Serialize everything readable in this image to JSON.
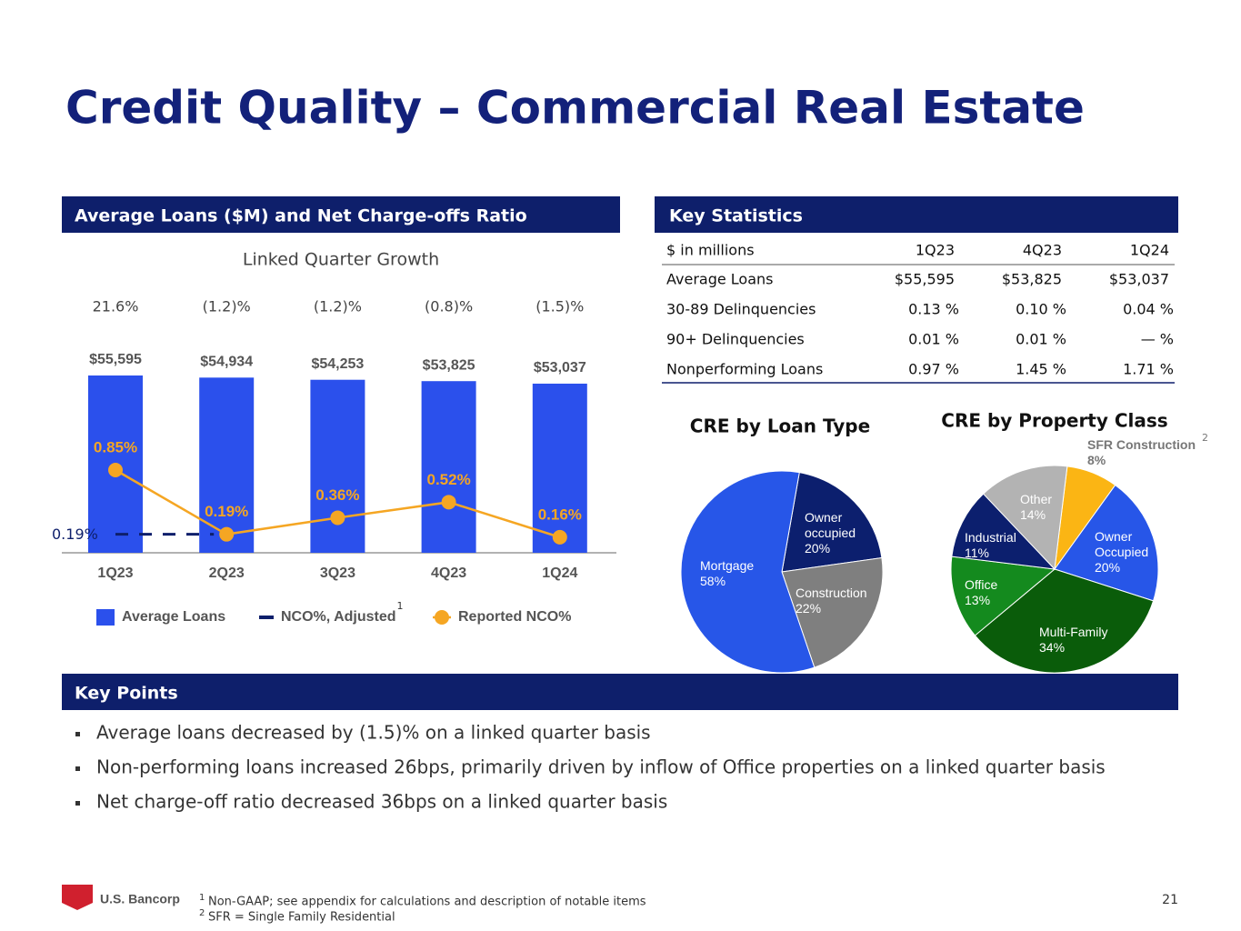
{
  "title": "Credit Quality – Commercial Real Estate",
  "chart_data": [
    {
      "type": "bar",
      "title": "Average Loans ($M) and Net Charge-offs Ratio",
      "subtitle": "Linked Quarter Growth",
      "annotations": [
        "21.6%",
        "(1.2)%",
        "(1.2)%",
        "(0.8)%",
        "(1.5)%"
      ],
      "categories": [
        "1Q23",
        "2Q23",
        "3Q23",
        "4Q23",
        "1Q24"
      ],
      "series": [
        {
          "name": "Average Loans",
          "type": "bar",
          "color": "#2b50ec",
          "values": [
            55595,
            54934,
            54253,
            53825,
            53037
          ],
          "value_labels": [
            "$55,595",
            "$54,934",
            "$54,253",
            "$53,825",
            "$53,037"
          ]
        },
        {
          "name": "NCO%, Adjusted",
          "type": "line",
          "style": "dashed",
          "color": "#0e1f6b",
          "footnote_ref": "1",
          "values": [
            0.19,
            0.19,
            null,
            null,
            null
          ],
          "value_labels": [
            "0.19%",
            null,
            null,
            null,
            null
          ]
        },
        {
          "name": "Reported NCO%",
          "type": "line",
          "color": "#f5a623",
          "values": [
            0.85,
            0.19,
            0.36,
            0.52,
            0.16
          ],
          "value_labels": [
            "0.85%",
            "0.19%",
            "0.36%",
            "0.52%",
            "0.16%"
          ]
        }
      ],
      "legend": "bottom"
    },
    {
      "type": "pie",
      "title": "CRE by Loan Type",
      "categories": [
        "Owner occupied",
        "Construction",
        "Mortgage"
      ],
      "values": [
        20,
        22,
        58
      ],
      "value_labels": [
        "20%",
        "22%",
        "58%"
      ],
      "colors": [
        "#0c1f6e",
        "#7f7f7f",
        "#2756e8"
      ]
    },
    {
      "type": "pie",
      "title": "CRE by Property Class",
      "footnote_ref": "2",
      "categories": [
        "SFR Construction",
        "Owner Occupied",
        "Multi-Family",
        "Office",
        "Industrial",
        "Other"
      ],
      "values": [
        8,
        20,
        34,
        13,
        11,
        14
      ],
      "value_labels": [
        "8%",
        "20%",
        "34%",
        "13%",
        "11%",
        "14%"
      ],
      "colors": [
        "#fbb514",
        "#2756e8",
        "#0a5c0a",
        "#148a1e",
        "#0c1f6e",
        "#b3b3b3"
      ]
    }
  ],
  "key_statistics": {
    "title": "Key Statistics",
    "columns": [
      "$ in millions",
      "1Q23",
      "4Q23",
      "1Q24"
    ],
    "rows": [
      [
        "Average Loans",
        "$55,595",
        "$53,825",
        "$53,037"
      ],
      [
        "30-89 Delinquencies",
        "0.13 %",
        "0.10 %",
        "0.04 %"
      ],
      [
        "90+ Delinquencies",
        "0.01 %",
        "0.01 %",
        "— %"
      ],
      [
        "Nonperforming Loans",
        "0.97 %",
        "1.45 %",
        "1.71 %"
      ]
    ]
  },
  "key_points": {
    "title": "Key Points",
    "items": [
      "Average loans decreased by (1.5)%  on a linked quarter basis",
      "Non-performing loans increased 26bps, primarily driven by inflow of Office properties on a linked quarter basis",
      "Net charge-off ratio decreased 36bps on a linked quarter basis"
    ]
  },
  "footnotes": [
    {
      "ref": "1",
      "text": "Non-GAAP; see appendix for calculations and description of notable items"
    },
    {
      "ref": "2",
      "text": "SFR = Single Family Residential"
    }
  ],
  "logo": "U.S. Bancorp",
  "page_number": "21"
}
